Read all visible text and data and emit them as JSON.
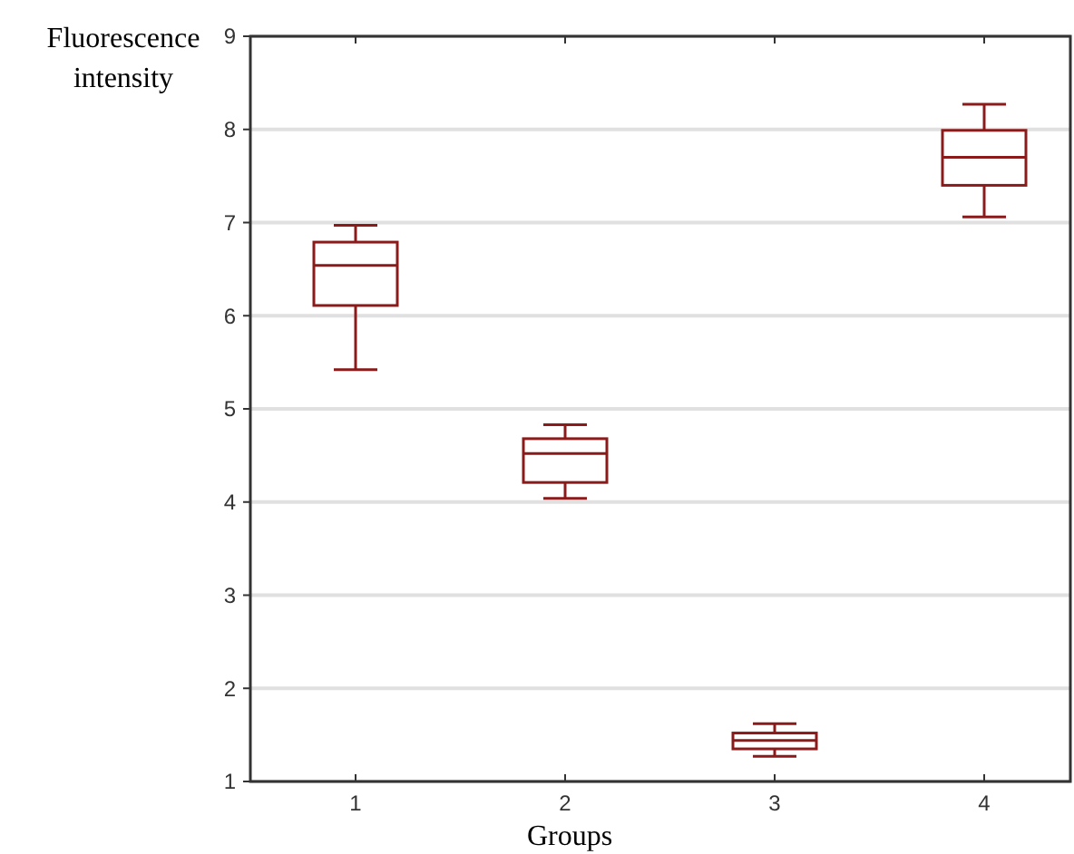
{
  "chart_data": {
    "type": "box",
    "xlabel": "Groups",
    "ylabel": "Fluorescence intensity",
    "categories": [
      "1",
      "2",
      "3",
      "4"
    ],
    "color": "#8b1a1a",
    "boxes": [
      {
        "low": 5.42,
        "q1": 6.11,
        "median": 6.54,
        "q3": 6.79,
        "high": 6.97
      },
      {
        "low": 4.04,
        "q1": 4.21,
        "median": 4.52,
        "q3": 4.68,
        "high": 4.83
      },
      {
        "low": 1.27,
        "q1": 1.35,
        "median": 1.44,
        "q3": 1.52,
        "high": 1.62
      },
      {
        "low": 7.06,
        "q1": 7.4,
        "median": 7.7,
        "q3": 7.99,
        "high": 8.27
      }
    ],
    "ylim": [
      1,
      9
    ],
    "yticks": [
      1,
      2,
      3,
      4,
      5,
      6,
      7,
      8,
      9
    ],
    "grid": "y"
  }
}
